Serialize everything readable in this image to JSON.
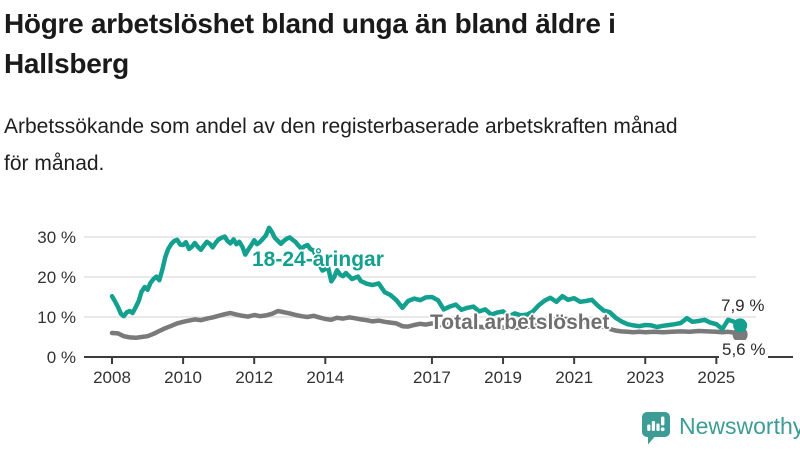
{
  "header": {
    "title_line1": "Högre arbetslöshet bland unga än bland äldre i",
    "title_line2": "Hallsberg",
    "subtitle_line1": "Arbetssökande som andel av den registerbaserade arbetskraften månad",
    "subtitle_line2": "för månad."
  },
  "branding": {
    "logo_text": "Newsworthy",
    "logo_color": "#3D9C96"
  },
  "chart_data": {
    "type": "line",
    "title": "Högre arbetslöshet bland unga än bland äldre i Hallsberg",
    "subtitle": "Arbetssökande som andel av den registerbaserade arbetskraften månad för månad.",
    "unit": "%",
    "grid": "horizontal",
    "x_axis": {
      "range": [
        2008,
        2025.75
      ],
      "ticks": [
        2008,
        2010,
        2012,
        2014,
        2017,
        2019,
        2021,
        2023,
        2025
      ]
    },
    "y_axis": {
      "range": [
        0,
        33
      ],
      "ticks": [
        0,
        10,
        20,
        30
      ],
      "tick_suffix": " %"
    },
    "style": {
      "grid_color": "#E2E2E2",
      "axis_color": "#3C3C3C",
      "text_color": "#333333",
      "background": "#FFFFFF"
    },
    "series": [
      {
        "name": "18-24-åringar",
        "label_text": "18-24-åringar",
        "end_label": "7,9 %",
        "end_value": 7.9,
        "color": "#14A08F",
        "line_width": 4.5,
        "dot_radius": 7,
        "points": [
          [
            2008.0,
            15.2
          ],
          [
            2008.08,
            14.0
          ],
          [
            2008.17,
            12.5
          ],
          [
            2008.25,
            10.8
          ],
          [
            2008.33,
            10.2
          ],
          [
            2008.42,
            11.2
          ],
          [
            2008.5,
            11.5
          ],
          [
            2008.58,
            11.0
          ],
          [
            2008.67,
            12.5
          ],
          [
            2008.75,
            14.0
          ],
          [
            2008.83,
            16.3
          ],
          [
            2008.92,
            17.5
          ],
          [
            2009.0,
            16.8
          ],
          [
            2009.08,
            18.5
          ],
          [
            2009.17,
            19.5
          ],
          [
            2009.25,
            20.1
          ],
          [
            2009.33,
            19.2
          ],
          [
            2009.42,
            22.0
          ],
          [
            2009.5,
            25.0
          ],
          [
            2009.58,
            27.0
          ],
          [
            2009.67,
            28.3
          ],
          [
            2009.75,
            29.0
          ],
          [
            2009.83,
            29.3
          ],
          [
            2009.92,
            28.1
          ],
          [
            2010.0,
            28.0
          ],
          [
            2010.08,
            28.7
          ],
          [
            2010.17,
            27.0
          ],
          [
            2010.25,
            27.6
          ],
          [
            2010.33,
            28.5
          ],
          [
            2010.42,
            27.5
          ],
          [
            2010.5,
            26.8
          ],
          [
            2010.58,
            27.8
          ],
          [
            2010.67,
            28.8
          ],
          [
            2010.75,
            28.3
          ],
          [
            2010.83,
            27.4
          ],
          [
            2010.92,
            28.6
          ],
          [
            2011.0,
            29.4
          ],
          [
            2011.08,
            29.8
          ],
          [
            2011.17,
            30.1
          ],
          [
            2011.25,
            29.0
          ],
          [
            2011.33,
            28.4
          ],
          [
            2011.42,
            29.4
          ],
          [
            2011.5,
            28.2
          ],
          [
            2011.58,
            28.8
          ],
          [
            2011.67,
            27.5
          ],
          [
            2011.75,
            25.6
          ],
          [
            2011.83,
            26.8
          ],
          [
            2011.92,
            28.0
          ],
          [
            2012.0,
            29.2
          ],
          [
            2012.08,
            28.2
          ],
          [
            2012.17,
            28.8
          ],
          [
            2012.25,
            29.6
          ],
          [
            2012.33,
            30.4
          ],
          [
            2012.42,
            32.3
          ],
          [
            2012.5,
            31.2
          ],
          [
            2012.58,
            29.8
          ],
          [
            2012.67,
            29.0
          ],
          [
            2012.75,
            28.3
          ],
          [
            2012.83,
            29.0
          ],
          [
            2012.92,
            29.6
          ],
          [
            2013.0,
            29.9
          ],
          [
            2013.08,
            29.3
          ],
          [
            2013.17,
            28.7
          ],
          [
            2013.25,
            27.8
          ],
          [
            2013.33,
            27.1
          ],
          [
            2013.42,
            27.7
          ],
          [
            2013.5,
            28.0
          ],
          [
            2013.58,
            27.0
          ],
          [
            2013.67,
            26.6
          ],
          [
            2013.75,
            25.0
          ],
          [
            2013.83,
            23.0
          ],
          [
            2013.92,
            21.6
          ],
          [
            2014.0,
            22.0
          ],
          [
            2014.08,
            22.4
          ],
          [
            2014.17,
            18.9
          ],
          [
            2014.25,
            20.0
          ],
          [
            2014.33,
            21.7
          ],
          [
            2014.42,
            20.6
          ],
          [
            2014.5,
            20.2
          ],
          [
            2014.58,
            21.0
          ],
          [
            2014.67,
            20.2
          ],
          [
            2014.75,
            19.5
          ],
          [
            2014.83,
            19.8
          ],
          [
            2014.92,
            20.1
          ],
          [
            2015.0,
            19.0
          ],
          [
            2015.17,
            18.3
          ],
          [
            2015.33,
            18.0
          ],
          [
            2015.5,
            18.4
          ],
          [
            2015.67,
            16.2
          ],
          [
            2015.83,
            15.5
          ],
          [
            2016.0,
            14.2
          ],
          [
            2016.17,
            12.3
          ],
          [
            2016.33,
            14.0
          ],
          [
            2016.5,
            14.6
          ],
          [
            2016.67,
            14.2
          ],
          [
            2016.83,
            14.9
          ],
          [
            2017.0,
            15.0
          ],
          [
            2017.17,
            14.2
          ],
          [
            2017.33,
            11.9
          ],
          [
            2017.5,
            12.6
          ],
          [
            2017.67,
            13.1
          ],
          [
            2017.83,
            11.8
          ],
          [
            2018.0,
            12.3
          ],
          [
            2018.17,
            12.6
          ],
          [
            2018.33,
            11.4
          ],
          [
            2018.5,
            11.9
          ],
          [
            2018.67,
            10.6
          ],
          [
            2018.83,
            11.1
          ],
          [
            2019.0,
            11.4
          ],
          [
            2019.17,
            10.2
          ],
          [
            2019.33,
            10.9
          ],
          [
            2019.5,
            10.4
          ],
          [
            2019.67,
            10.6
          ],
          [
            2019.83,
            11.3
          ],
          [
            2020.0,
            12.9
          ],
          [
            2020.17,
            14.1
          ],
          [
            2020.33,
            14.8
          ],
          [
            2020.5,
            13.8
          ],
          [
            2020.67,
            15.2
          ],
          [
            2020.83,
            14.3
          ],
          [
            2021.0,
            14.7
          ],
          [
            2021.17,
            13.8
          ],
          [
            2021.33,
            14.0
          ],
          [
            2021.5,
            14.3
          ],
          [
            2021.67,
            12.8
          ],
          [
            2021.83,
            11.6
          ],
          [
            2022.0,
            11.2
          ],
          [
            2022.17,
            9.8
          ],
          [
            2022.33,
            8.9
          ],
          [
            2022.5,
            8.2
          ],
          [
            2022.67,
            7.9
          ],
          [
            2022.83,
            7.7
          ],
          [
            2023.0,
            8.0
          ],
          [
            2023.17,
            7.9
          ],
          [
            2023.33,
            7.5
          ],
          [
            2023.5,
            7.8
          ],
          [
            2023.67,
            8.0
          ],
          [
            2023.83,
            8.2
          ],
          [
            2024.0,
            8.5
          ],
          [
            2024.17,
            9.7
          ],
          [
            2024.33,
            8.8
          ],
          [
            2024.5,
            9.0
          ],
          [
            2024.67,
            9.3
          ],
          [
            2024.83,
            8.6
          ],
          [
            2025.0,
            8.2
          ],
          [
            2025.17,
            7.0
          ],
          [
            2025.33,
            9.3
          ],
          [
            2025.5,
            8.8
          ],
          [
            2025.67,
            7.9
          ]
        ]
      },
      {
        "name": "Total arbetslöshet",
        "label_text": "Total arbetslöshet",
        "end_label": "5,6 %",
        "end_value": 5.6,
        "color": "#7A7A7A",
        "line_width": 4.5,
        "dot_radius": 7.5,
        "points": [
          [
            2008.0,
            6.0
          ],
          [
            2008.17,
            5.9
          ],
          [
            2008.33,
            5.2
          ],
          [
            2008.5,
            4.9
          ],
          [
            2008.67,
            4.8
          ],
          [
            2008.83,
            5.0
          ],
          [
            2009.0,
            5.2
          ],
          [
            2009.17,
            5.8
          ],
          [
            2009.33,
            6.5
          ],
          [
            2009.5,
            7.2
          ],
          [
            2009.67,
            7.8
          ],
          [
            2009.83,
            8.4
          ],
          [
            2010.0,
            8.8
          ],
          [
            2010.17,
            9.1
          ],
          [
            2010.33,
            9.4
          ],
          [
            2010.5,
            9.2
          ],
          [
            2010.67,
            9.6
          ],
          [
            2010.83,
            9.9
          ],
          [
            2011.0,
            10.3
          ],
          [
            2011.17,
            10.7
          ],
          [
            2011.33,
            11.0
          ],
          [
            2011.5,
            10.6
          ],
          [
            2011.67,
            10.3
          ],
          [
            2011.83,
            10.1
          ],
          [
            2012.0,
            10.5
          ],
          [
            2012.17,
            10.2
          ],
          [
            2012.33,
            10.4
          ],
          [
            2012.5,
            10.8
          ],
          [
            2012.67,
            11.5
          ],
          [
            2012.83,
            11.2
          ],
          [
            2013.0,
            10.9
          ],
          [
            2013.17,
            10.5
          ],
          [
            2013.33,
            10.2
          ],
          [
            2013.5,
            10.0
          ],
          [
            2013.67,
            10.3
          ],
          [
            2013.83,
            9.9
          ],
          [
            2014.0,
            9.5
          ],
          [
            2014.17,
            9.3
          ],
          [
            2014.33,
            9.8
          ],
          [
            2014.5,
            9.6
          ],
          [
            2014.67,
            9.9
          ],
          [
            2014.83,
            9.7
          ],
          [
            2015.0,
            9.4
          ],
          [
            2015.17,
            9.2
          ],
          [
            2015.33,
            8.9
          ],
          [
            2015.5,
            9.1
          ],
          [
            2015.67,
            8.8
          ],
          [
            2015.83,
            8.6
          ],
          [
            2016.0,
            8.4
          ],
          [
            2016.17,
            7.7
          ],
          [
            2016.33,
            7.6
          ],
          [
            2016.5,
            8.0
          ],
          [
            2016.67,
            8.3
          ],
          [
            2016.83,
            8.1
          ],
          [
            2017.0,
            8.4
          ],
          [
            2017.17,
            8.1
          ],
          [
            2017.33,
            7.9
          ],
          [
            2017.5,
            8.2
          ],
          [
            2017.67,
            8.0
          ],
          [
            2017.83,
            7.8
          ],
          [
            2018.0,
            7.9
          ],
          [
            2018.25,
            7.6
          ],
          [
            2018.5,
            7.4
          ],
          [
            2018.75,
            7.5
          ],
          [
            2019.0,
            7.4
          ],
          [
            2019.25,
            7.2
          ],
          [
            2019.5,
            7.4
          ],
          [
            2019.75,
            7.6
          ],
          [
            2020.0,
            8.0
          ],
          [
            2020.25,
            9.0
          ],
          [
            2020.5,
            9.4
          ],
          [
            2020.75,
            9.5
          ],
          [
            2021.0,
            9.2
          ],
          [
            2021.25,
            8.8
          ],
          [
            2021.5,
            8.4
          ],
          [
            2021.75,
            7.8
          ],
          [
            2022.0,
            7.0
          ],
          [
            2022.17,
            6.6
          ],
          [
            2022.33,
            6.4
          ],
          [
            2022.5,
            6.3
          ],
          [
            2022.67,
            6.2
          ],
          [
            2022.83,
            6.3
          ],
          [
            2023.0,
            6.2
          ],
          [
            2023.25,
            6.3
          ],
          [
            2023.5,
            6.2
          ],
          [
            2023.75,
            6.3
          ],
          [
            2024.0,
            6.4
          ],
          [
            2024.25,
            6.3
          ],
          [
            2024.5,
            6.5
          ],
          [
            2024.75,
            6.4
          ],
          [
            2025.0,
            6.3
          ],
          [
            2025.17,
            6.2
          ],
          [
            2025.33,
            6.3
          ],
          [
            2025.5,
            6.1
          ],
          [
            2025.67,
            5.6
          ]
        ]
      }
    ]
  }
}
